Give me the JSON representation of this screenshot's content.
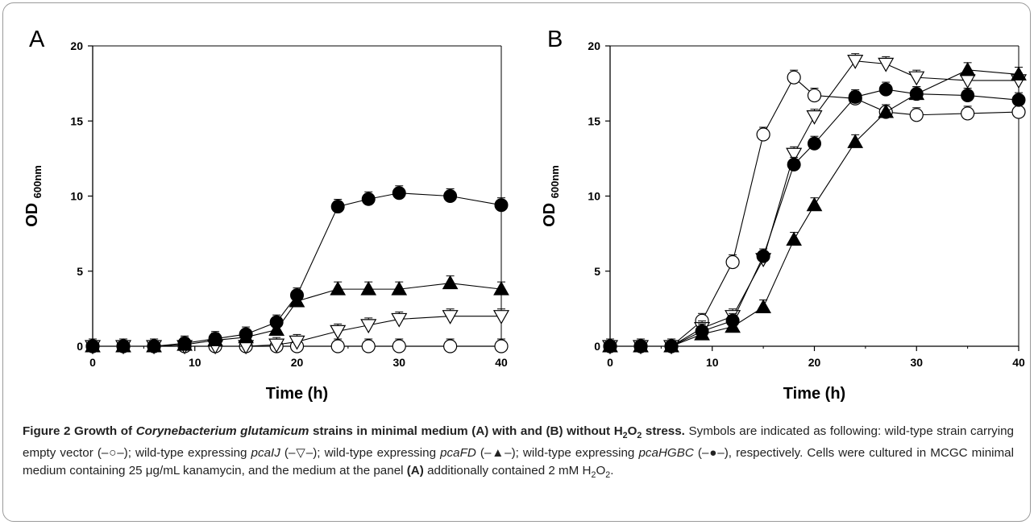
{
  "chart_data": [
    {
      "panel": "A",
      "type": "line",
      "xlabel": "Time (h)",
      "ylabel": "OD",
      "ylabel_sub": "600nm",
      "xlim": [
        0,
        40
      ],
      "ylim": [
        0,
        20
      ],
      "xticks": [
        0,
        10,
        20,
        30,
        40
      ],
      "yticks": [
        0,
        5,
        10,
        15,
        20
      ],
      "series": [
        {
          "marker": "open-circle",
          "x": [
            0,
            3,
            6,
            9,
            12,
            15,
            18,
            20,
            24,
            27,
            30,
            35,
            40
          ],
          "y": [
            0,
            0,
            0,
            0,
            0,
            0,
            0,
            0,
            0,
            0,
            0,
            0,
            0
          ]
        },
        {
          "marker": "open-triangle-down",
          "x": [
            0,
            3,
            6,
            9,
            12,
            15,
            18,
            20,
            24,
            27,
            30,
            35,
            40
          ],
          "y": [
            0,
            0,
            0,
            0,
            0,
            0,
            0.1,
            0.3,
            1.0,
            1.4,
            1.8,
            2.0,
            2.0
          ]
        },
        {
          "marker": "filled-triangle-up",
          "x": [
            0,
            3,
            6,
            9,
            12,
            15,
            18,
            20,
            24,
            27,
            30,
            35,
            40
          ],
          "y": [
            0,
            0,
            0,
            0.1,
            0.4,
            0.6,
            1.1,
            3.0,
            3.8,
            3.8,
            3.8,
            4.2,
            3.8
          ]
        },
        {
          "marker": "filled-circle",
          "x": [
            0,
            3,
            6,
            9,
            12,
            15,
            18,
            20,
            24,
            27,
            30,
            35,
            40
          ],
          "y": [
            0,
            0,
            0,
            0.2,
            0.5,
            0.8,
            1.6,
            3.4,
            9.3,
            9.8,
            10.2,
            10.0,
            9.4
          ]
        }
      ]
    },
    {
      "panel": "B",
      "type": "line",
      "xlabel": "Time (h)",
      "ylabel": "OD",
      "ylabel_sub": "600nm",
      "xlim": [
        0,
        40
      ],
      "ylim": [
        0,
        20
      ],
      "xticks": [
        0,
        10,
        20,
        30,
        40
      ],
      "yticks": [
        0,
        5,
        10,
        15,
        20
      ],
      "series": [
        {
          "marker": "open-circle",
          "x": [
            0,
            3,
            6,
            9,
            12,
            15,
            18,
            20,
            24,
            27,
            30,
            35,
            40
          ],
          "y": [
            0,
            0,
            0,
            1.7,
            5.6,
            14.1,
            17.9,
            16.7,
            16.5,
            15.6,
            15.4,
            15.5,
            15.6
          ]
        },
        {
          "marker": "open-triangle-down",
          "x": [
            0,
            3,
            6,
            9,
            12,
            15,
            18,
            20,
            24,
            27,
            30,
            35,
            40
          ],
          "y": [
            0,
            0,
            0,
            1.2,
            2.0,
            5.8,
            12.8,
            15.3,
            19.0,
            18.8,
            17.9,
            17.7,
            17.7
          ]
        },
        {
          "marker": "filled-triangle-up",
          "x": [
            0,
            3,
            6,
            9,
            12,
            15,
            18,
            20,
            24,
            27,
            30,
            35,
            40
          ],
          "y": [
            0,
            0,
            0,
            0.8,
            1.3,
            2.6,
            7.1,
            9.4,
            13.6,
            15.6,
            16.8,
            18.4,
            18.1
          ]
        },
        {
          "marker": "filled-circle",
          "x": [
            0,
            3,
            6,
            9,
            12,
            15,
            18,
            20,
            24,
            27,
            30,
            35,
            40
          ],
          "y": [
            0,
            0,
            0,
            1.0,
            1.7,
            6.0,
            12.1,
            13.5,
            16.6,
            17.1,
            16.8,
            16.7,
            16.4
          ]
        }
      ]
    }
  ],
  "caption": {
    "title_parts": [
      {
        "text": "Figure 2 Growth of ",
        "style": "b"
      },
      {
        "text": "Corynebacterium glutamicum",
        "style": "bi"
      },
      {
        "text": " strains in minimal medium (A) with and (B) without H",
        "style": "b"
      },
      {
        "text": "2",
        "style": "bsub"
      },
      {
        "text": "O",
        "style": "b"
      },
      {
        "text": "2",
        "style": "bsub"
      },
      {
        "text": " stress.",
        "style": "b"
      }
    ],
    "body_parts": [
      {
        "text": " Symbols are indicated as following: wild-type strain carrying empty vector (–○–); wild-type expressing ",
        "style": "n"
      },
      {
        "text": "pcaIJ",
        "style": "i"
      },
      {
        "text": " (–▽–); wild-type expressing ",
        "style": "n"
      },
      {
        "text": "pcaFD",
        "style": "i"
      },
      {
        "text": " (–▲–); wild-type expressing ",
        "style": "n"
      },
      {
        "text": "pcaHGBC",
        "style": "i"
      },
      {
        "text": " (–●–), respectively. Cells were cultured in MCGC minimal medium containing 25 μg/mL kanamycin, and the medium at the panel ",
        "style": "n"
      },
      {
        "text": "(A)",
        "style": "b"
      },
      {
        "text": " additionally contained 2 mM H",
        "style": "n"
      },
      {
        "text": "2",
        "style": "sub"
      },
      {
        "text": "O",
        "style": "n"
      },
      {
        "text": "2",
        "style": "sub"
      },
      {
        "text": ".",
        "style": "n"
      }
    ]
  }
}
